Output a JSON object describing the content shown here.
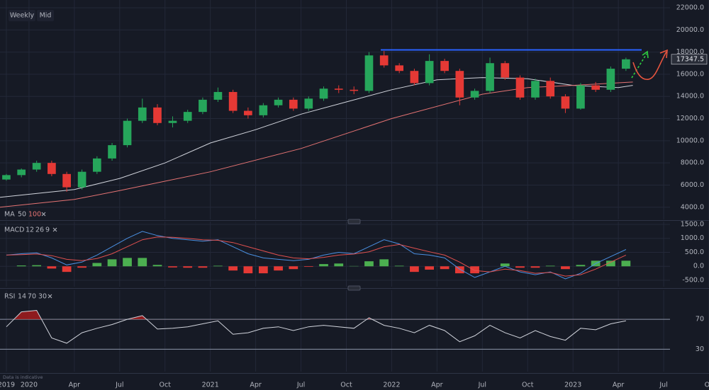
{
  "chart_data": [
    {
      "type": "candlestick",
      "interval": "Weekly",
      "price_type": "Mid",
      "indicator_label": "MA",
      "note": "Data is indicative",
      "xlim": [
        2019.84,
        2023.75
      ],
      "xticks": [
        {
          "value": 2019.875,
          "label": "2019"
        },
        {
          "value": 2020,
          "label": "2020"
        },
        {
          "value": 2020.25,
          "label": "Apr"
        },
        {
          "value": 2020.5,
          "label": "Jul"
        },
        {
          "value": 2020.75,
          "label": "Oct"
        },
        {
          "value": 2021,
          "label": "2021"
        },
        {
          "value": 2021.25,
          "label": "Apr"
        },
        {
          "value": 2021.5,
          "label": "Jul"
        },
        {
          "value": 2021.75,
          "label": "Oct"
        },
        {
          "value": 2022,
          "label": "2022"
        },
        {
          "value": 2022.25,
          "label": "Apr"
        },
        {
          "value": 2022.5,
          "label": "Jul"
        },
        {
          "value": 2022.75,
          "label": "Oct"
        },
        {
          "value": 2023,
          "label": "2023"
        },
        {
          "value": 2023.25,
          "label": "Apr"
        },
        {
          "value": 2023.5,
          "label": "Jul"
        },
        {
          "value": 2023.75,
          "label": "Oc"
        }
      ],
      "ylim": [
        2900,
        22700
      ],
      "yticks": [
        {
          "value": 4000,
          "label": "4000.0"
        },
        {
          "value": 6000,
          "label": "6000.0"
        },
        {
          "value": 8000,
          "label": "8000.0"
        },
        {
          "value": 10000,
          "label": "10000.0"
        },
        {
          "value": 12000,
          "label": "12000.0"
        },
        {
          "value": 14000,
          "label": "14000.0"
        },
        {
          "value": 16000,
          "label": "16000.0"
        },
        {
          "value": 18000,
          "label": "18000.0"
        },
        {
          "value": 20000,
          "label": "20000.0"
        },
        {
          "value": 22000,
          "label": "22000.0"
        }
      ],
      "up_color": "#26a65b",
      "down_color": "#e53935",
      "x": [
        2019.875,
        2019.958,
        2020.042,
        2020.125,
        2020.208,
        2020.292,
        2020.375,
        2020.458,
        2020.542,
        2020.625,
        2020.708,
        2020.792,
        2020.875,
        2020.958,
        2021.042,
        2021.125,
        2021.208,
        2021.292,
        2021.375,
        2021.458,
        2021.542,
        2021.625,
        2021.708,
        2021.792,
        2021.875,
        2021.958,
        2022.042,
        2022.125,
        2022.208,
        2022.292,
        2022.375,
        2022.458,
        2022.542,
        2022.625,
        2022.708,
        2022.792,
        2022.875,
        2022.958,
        2023.042,
        2023.125,
        2023.208,
        2023.292
      ],
      "open": [
        6500,
        6900,
        7400,
        8000,
        7000,
        5800,
        7200,
        8400,
        9600,
        11800,
        13000,
        11600,
        11800,
        12600,
        13700,
        14400,
        12700,
        12300,
        13200,
        13700,
        12900,
        13800,
        14700,
        14600,
        14500,
        17700,
        16800,
        16300,
        15200,
        17200,
        16300,
        13900,
        14500,
        17000,
        15700,
        13900,
        15400,
        14000,
        12900,
        15000,
        14600,
        16500
      ],
      "high": [
        7000,
        7500,
        8200,
        8200,
        7200,
        7400,
        8600,
        9800,
        12000,
        13800,
        13300,
        12200,
        12800,
        13900,
        14800,
        14600,
        13000,
        13400,
        13900,
        13900,
        14000,
        14900,
        15000,
        14900,
        18000,
        18100,
        17000,
        16500,
        17800,
        17400,
        16500,
        14700,
        17500,
        17200,
        15900,
        15600,
        15700,
        14200,
        15200,
        15300,
        16700,
        17500
      ],
      "low": [
        6400,
        6700,
        7200,
        6800,
        5400,
        5600,
        7000,
        8200,
        9400,
        11600,
        11400,
        11200,
        11600,
        12400,
        13500,
        12500,
        12000,
        12100,
        13000,
        12700,
        12700,
        13600,
        14300,
        14200,
        14300,
        16600,
        16100,
        15000,
        15000,
        16100,
        13200,
        13700,
        14300,
        15500,
        13700,
        13700,
        13800,
        12500,
        12800,
        14400,
        14400,
        16300
      ],
      "close": [
        6900,
        7400,
        8000,
        7000,
        5800,
        7200,
        8400,
        9600,
        11800,
        13000,
        11600,
        11800,
        12600,
        13700,
        14400,
        12700,
        12300,
        13200,
        13700,
        12900,
        13800,
        14700,
        14600,
        14500,
        17700,
        16800,
        16300,
        15200,
        17200,
        16300,
        13900,
        14500,
        17000,
        15700,
        13900,
        15400,
        14000,
        12900,
        15000,
        14600,
        16500,
        17347.5
      ],
      "last_price": {
        "value": 17347.5,
        "label": "17347.5"
      },
      "resistance": 18200,
      "resistance_color": "#2962ff",
      "series": [
        {
          "name": "50",
          "color": "#d1d4dc",
          "x": [
            2019.84,
            2020.25,
            2020.5,
            2020.75,
            2021.0,
            2021.25,
            2021.5,
            2021.75,
            2022.0,
            2022.25,
            2022.5,
            2022.75,
            2023.0,
            2023.25,
            2023.33
          ],
          "values": [
            4900,
            5600,
            6600,
            8000,
            9800,
            11000,
            12400,
            13500,
            14600,
            15500,
            15700,
            15600,
            15000,
            14800,
            15000
          ]
        },
        {
          "name": "100",
          "color": "#e57373",
          "x": [
            2019.84,
            2020.25,
            2020.5,
            2021.0,
            2021.5,
            2022.0,
            2022.5,
            2022.75,
            2023.0,
            2023.33
          ],
          "values": [
            4000,
            4700,
            5500,
            7200,
            9300,
            12000,
            14200,
            14800,
            15000,
            15300
          ]
        }
      ]
    },
    {
      "type": "combo",
      "indicator_label": "MACD",
      "ylim": [
        -728,
        1601
      ],
      "yticks": [
        {
          "value": -500,
          "label": "-500.0"
        },
        {
          "value": 0,
          "label": "0.0"
        },
        {
          "value": 500,
          "label": "500.0"
        },
        {
          "value": 1000,
          "label": "1000.0"
        },
        {
          "value": 1500,
          "label": "1500.0"
        }
      ],
      "up_color": "#4caf50",
      "down_color": "#e53935",
      "series": [
        {
          "name": "12",
          "kind": "line",
          "color": "#4a90e2",
          "values": [
            400,
            450,
            480,
            300,
            50,
            150,
            400,
            700,
            1000,
            1250,
            1100,
            1000,
            950,
            900,
            950,
            700,
            450,
            300,
            250,
            200,
            250,
            400,
            500,
            450,
            700,
            950,
            800,
            450,
            400,
            300,
            -100,
            -400,
            -200,
            0,
            -200,
            -300,
            -200,
            -450,
            -250,
            100,
            350,
            600
          ]
        },
        {
          "name": "26",
          "kind": "line",
          "color": "#e0504f",
          "values": [
            400,
            420,
            440,
            380,
            250,
            200,
            280,
            450,
            700,
            950,
            1050,
            1040,
            1000,
            950,
            930,
            850,
            700,
            550,
            400,
            300,
            270,
            320,
            400,
            440,
            520,
            700,
            780,
            650,
            520,
            400,
            150,
            -150,
            -200,
            -100,
            -150,
            -250,
            -220,
            -350,
            -300,
            -100,
            150,
            400
          ]
        },
        {
          "name": "9",
          "kind": "bar",
          "values": [
            0,
            30,
            40,
            -80,
            -200,
            -50,
            120,
            250,
            300,
            300,
            50,
            -40,
            -50,
            -50,
            20,
            -150,
            -250,
            -250,
            -150,
            -100,
            -20,
            80,
            100,
            10,
            180,
            250,
            20,
            -200,
            -120,
            -100,
            -250,
            -250,
            0,
            100,
            -50,
            -50,
            20,
            -100,
            50,
            200,
            200,
            200
          ]
        }
      ]
    },
    {
      "type": "line",
      "indicator_label": "RSI",
      "levels": [
        70,
        30
      ],
      "overbought_color": "#b71c1c",
      "ylim": [
        0,
        109
      ],
      "yticks": [
        70,
        30
      ],
      "series": [
        {
          "name": "14",
          "color": "#d1d4dc",
          "values": [
            60,
            80,
            82,
            45,
            38,
            52,
            58,
            63,
            70,
            75,
            57,
            58,
            60,
            64,
            68,
            50,
            52,
            58,
            60,
            55,
            60,
            62,
            60,
            58,
            72,
            62,
            58,
            52,
            62,
            55,
            40,
            48,
            62,
            52,
            45,
            55,
            47,
            42,
            58,
            56,
            64,
            68
          ]
        }
      ]
    }
  ]
}
